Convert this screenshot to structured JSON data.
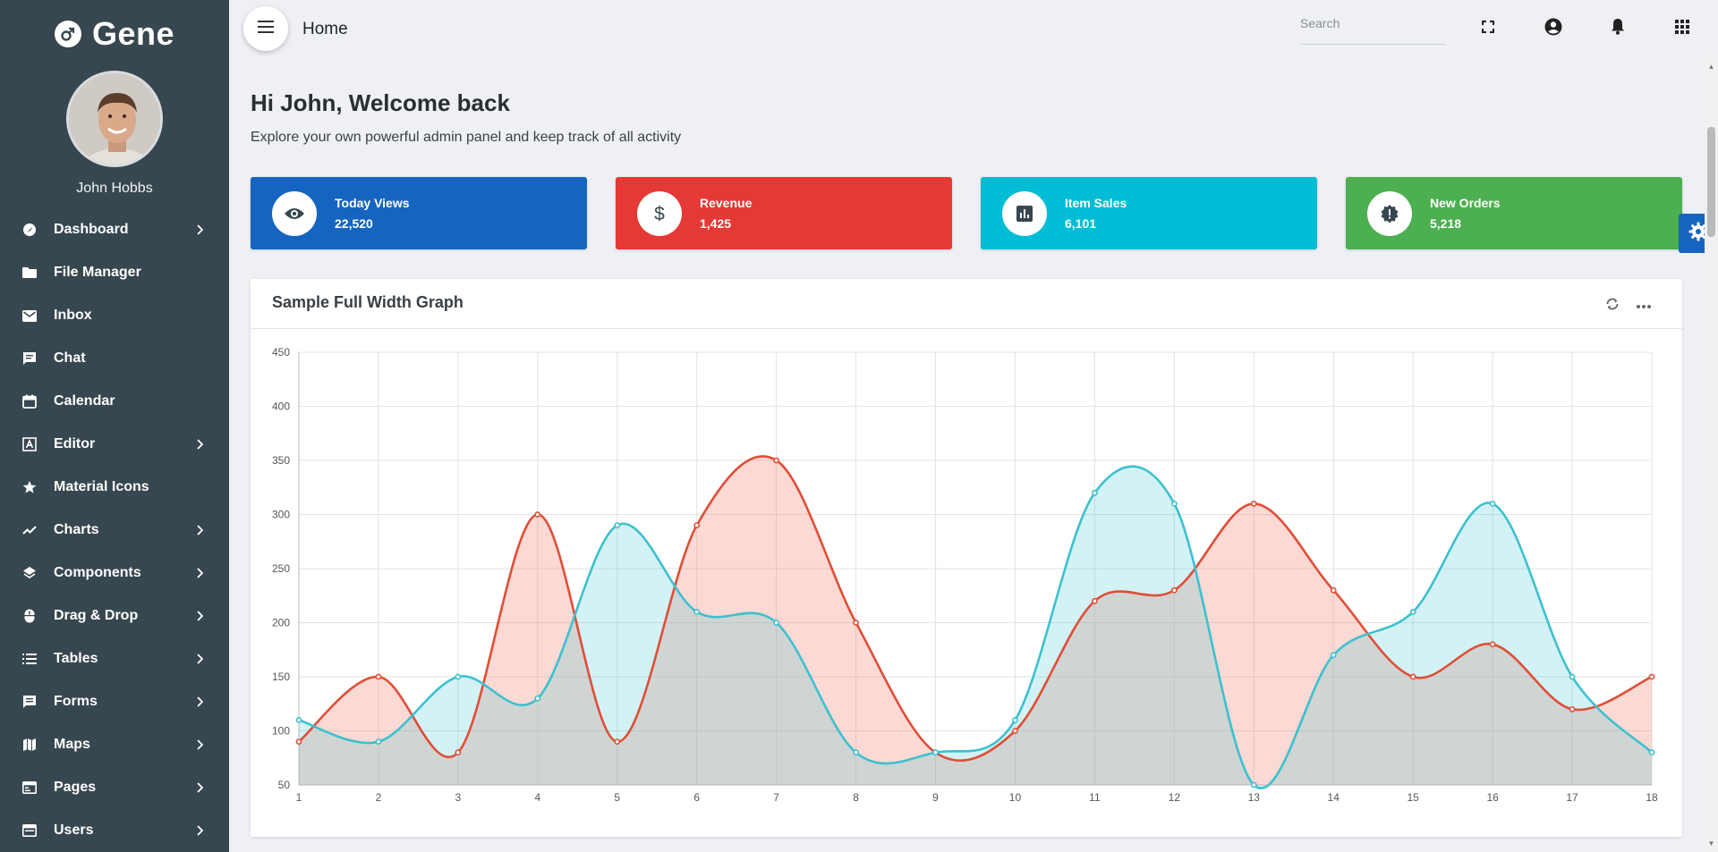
{
  "app": {
    "name": "Gene"
  },
  "user": {
    "name": "John Hobbs"
  },
  "sidebar": {
    "items": [
      {
        "label": "Dashboard",
        "icon": "dashboard-icon",
        "has_children": true
      },
      {
        "label": "File Manager",
        "icon": "folder-icon",
        "has_children": false
      },
      {
        "label": "Inbox",
        "icon": "mail-icon",
        "has_children": false
      },
      {
        "label": "Chat",
        "icon": "chat-icon",
        "has_children": false
      },
      {
        "label": "Calendar",
        "icon": "calendar-icon",
        "has_children": false
      },
      {
        "label": "Editor",
        "icon": "editor-icon",
        "has_children": true
      },
      {
        "label": "Material Icons",
        "icon": "star-icon",
        "has_children": false
      },
      {
        "label": "Charts",
        "icon": "chart-line-icon",
        "has_children": true
      },
      {
        "label": "Components",
        "icon": "layers-icon",
        "has_children": true
      },
      {
        "label": "Drag & Drop",
        "icon": "mouse-icon",
        "has_children": true
      },
      {
        "label": "Tables",
        "icon": "list-icon",
        "has_children": true
      },
      {
        "label": "Forms",
        "icon": "form-icon",
        "has_children": true
      },
      {
        "label": "Maps",
        "icon": "map-icon",
        "has_children": true
      },
      {
        "label": "Pages",
        "icon": "pages-icon",
        "has_children": true
      },
      {
        "label": "Users",
        "icon": "users-icon",
        "has_children": true
      }
    ]
  },
  "topbar": {
    "breadcrumb": "Home",
    "search_placeholder": "Search"
  },
  "welcome": {
    "title": "Hi John, Welcome back",
    "subtitle": "Explore your own powerful admin panel and keep track of all activity"
  },
  "stats": [
    {
      "title": "Today Views",
      "value": "22,520",
      "color": "#1565c0",
      "icon": "eye-icon"
    },
    {
      "title": "Revenue",
      "value": "1,425",
      "color": "#e53935",
      "icon": "dollar-icon"
    },
    {
      "title": "Item Sales",
      "value": "6,101",
      "color": "#00bcd4",
      "icon": "bar-chart-icon"
    },
    {
      "title": "New Orders",
      "value": "5,218",
      "color": "#4caf50",
      "icon": "alert-badge-icon"
    }
  ],
  "card": {
    "title": "Sample Full Width Graph"
  },
  "chart_data": {
    "type": "area",
    "title": "",
    "xlabel": "",
    "ylabel": "",
    "x": [
      1,
      2,
      3,
      4,
      5,
      6,
      7,
      8,
      9,
      10,
      11,
      12,
      13,
      14,
      15,
      16,
      17,
      18
    ],
    "ylim": [
      50,
      450
    ],
    "y_ticks": [
      50,
      100,
      150,
      200,
      250,
      300,
      350,
      400,
      450
    ],
    "grid": true,
    "series": [
      {
        "color": "#e04e37",
        "fill": "rgba(240,120,100,0.28)",
        "values": [
          90,
          150,
          80,
          300,
          90,
          290,
          350,
          200,
          80,
          100,
          220,
          230,
          310,
          230,
          150,
          180,
          120,
          150
        ]
      },
      {
        "color": "#3cc1cf",
        "fill": "rgba(70,200,215,0.24)",
        "values": [
          110,
          90,
          150,
          130,
          290,
          210,
          200,
          80,
          80,
          110,
          320,
          310,
          50,
          170,
          210,
          310,
          150,
          80
        ]
      }
    ]
  }
}
